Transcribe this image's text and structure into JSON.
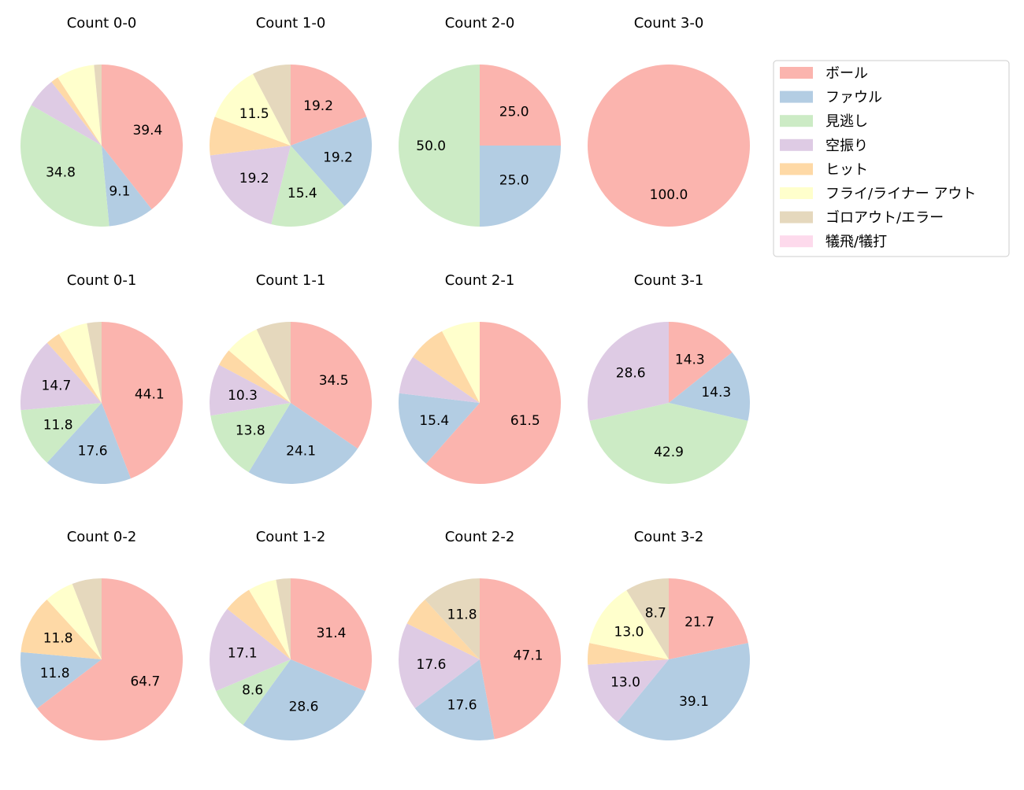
{
  "chart_data": {
    "type": "pie",
    "legend": {
      "placement": "top-right",
      "entries": [
        "ボール",
        "ファウル",
        "見逃し",
        "空振り",
        "ヒット",
        "フライ/ライナー アウト",
        "ゴロアウト/エラー",
        "犠飛/犠打"
      ]
    },
    "colors": [
      "#fbb4ae",
      "#b3cde3",
      "#ccebc5",
      "#decbe4",
      "#fed9a6",
      "#ffffcc",
      "#e5d8bd",
      "#fddaec"
    ],
    "start_angle_deg": 90,
    "direction": "clockwise",
    "label_min_percent": 8,
    "charts": [
      {
        "title": "Count 0-0",
        "values": [
          39.4,
          9.1,
          34.8,
          6.1,
          1.5,
          7.6,
          1.5,
          0
        ]
      },
      {
        "title": "Count 1-0",
        "values": [
          19.2,
          19.2,
          15.4,
          19.2,
          7.7,
          11.5,
          7.7,
          0
        ]
      },
      {
        "title": "Count 2-0",
        "values": [
          25.0,
          25.0,
          50.0,
          0,
          0,
          0,
          0,
          0
        ]
      },
      {
        "title": "Count 3-0",
        "values": [
          100.0,
          0,
          0,
          0,
          0,
          0,
          0,
          0
        ]
      },
      {
        "title": "Count 0-1",
        "values": [
          44.1,
          17.6,
          11.8,
          14.7,
          2.9,
          5.9,
          2.9,
          0
        ]
      },
      {
        "title": "Count 1-1",
        "values": [
          34.5,
          24.1,
          13.8,
          10.3,
          3.4,
          6.9,
          6.9,
          0
        ]
      },
      {
        "title": "Count 2-1",
        "values": [
          61.5,
          15.4,
          0,
          7.7,
          7.7,
          7.7,
          0,
          0
        ]
      },
      {
        "title": "Count 3-1",
        "values": [
          14.3,
          14.3,
          42.9,
          28.6,
          0,
          0,
          0,
          0
        ]
      },
      {
        "title": "Count 0-2",
        "values": [
          64.7,
          11.8,
          0,
          0,
          11.8,
          5.9,
          5.9,
          0
        ]
      },
      {
        "title": "Count 1-2",
        "values": [
          31.4,
          28.6,
          8.6,
          17.1,
          5.7,
          5.7,
          2.9,
          0
        ]
      },
      {
        "title": "Count 2-2",
        "values": [
          47.1,
          17.6,
          0,
          17.6,
          5.9,
          0,
          11.8,
          0
        ]
      },
      {
        "title": "Count 3-2",
        "values": [
          21.7,
          39.1,
          0,
          13.0,
          4.3,
          13.0,
          8.7,
          0
        ]
      }
    ]
  }
}
